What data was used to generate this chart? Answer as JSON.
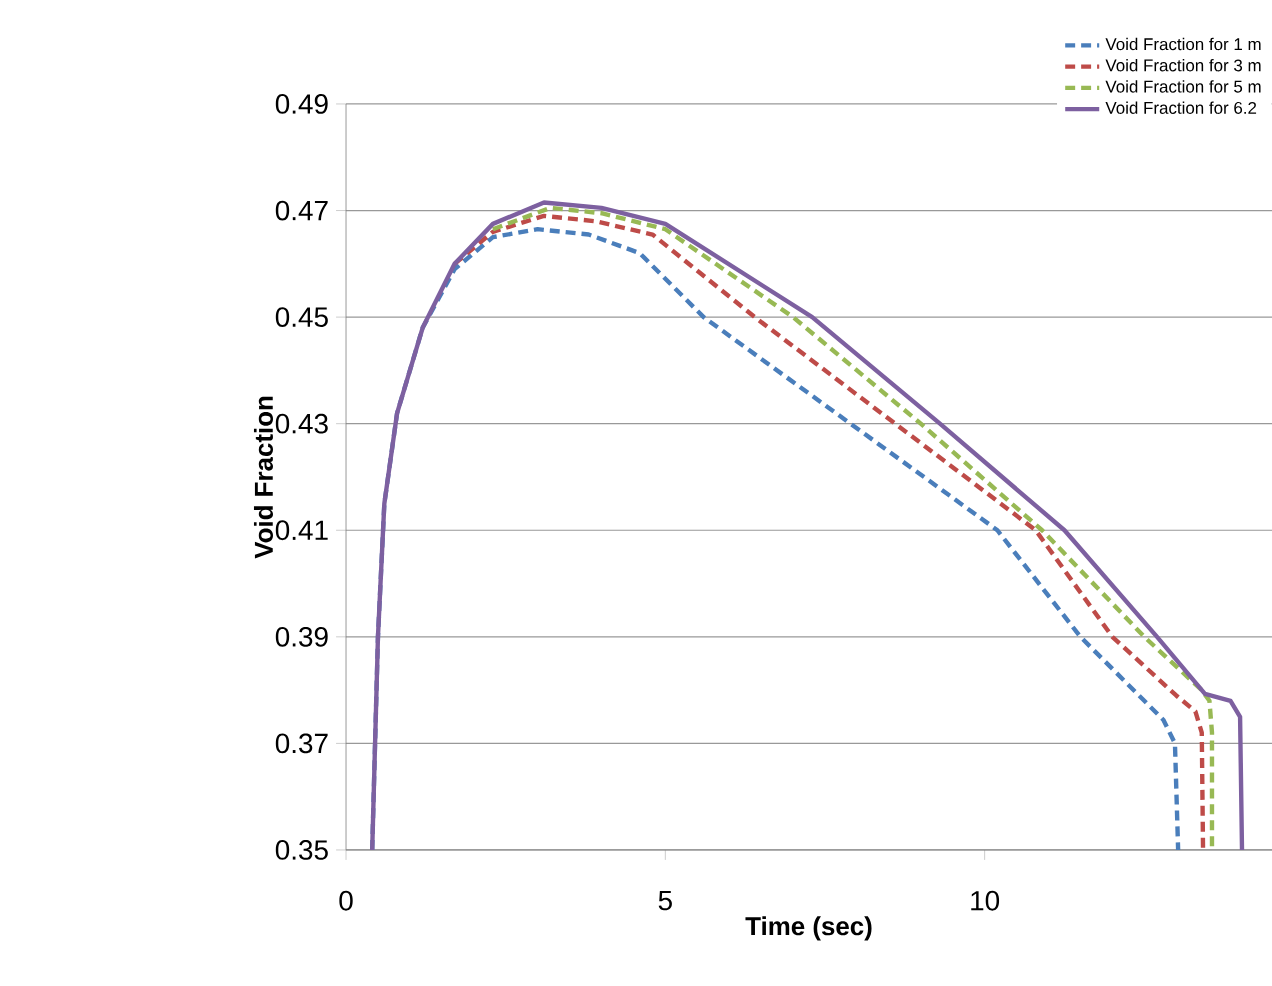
{
  "chart_data": {
    "type": "line",
    "xlabel": "Time (sec)",
    "ylabel": "Void Fraction",
    "xlim": [
      0,
      14.5
    ],
    "ylim": [
      0.35,
      0.49
    ],
    "xticks": [
      0,
      5,
      10
    ],
    "yticks": [
      0.35,
      0.37,
      0.39,
      0.41,
      0.43,
      0.45,
      0.47,
      0.49
    ],
    "grid": "y",
    "legend": "top right",
    "marker": "none",
    "series": [
      {
        "name": "Void Fraction for 1 m",
        "color": "#4a7ebb",
        "line_style": "dashed",
        "x": [
          0.41,
          0.5,
          0.6,
          0.8,
          1.2,
          1.7,
          2.3,
          3.0,
          3.8,
          4.6,
          5.6,
          7.9,
          10.2,
          11.5,
          12.5,
          12.8,
          12.98,
          13.03
        ],
        "values": [
          0.35,
          0.39,
          0.415,
          0.432,
          0.448,
          0.459,
          0.465,
          0.4665,
          0.4655,
          0.462,
          0.45,
          0.43,
          0.41,
          0.39,
          0.378,
          0.3744,
          0.37,
          0.35
        ]
      },
      {
        "name": "Void Fraction for 3 m",
        "color": "#be4b48",
        "line_style": "dashed",
        "x": [
          1.7,
          2.3,
          3.1,
          3.9,
          4.8,
          6.4,
          8.6,
          10.8,
          12.0,
          13.0,
          13.3,
          13.4,
          13.42
        ],
        "values": [
          0.46,
          0.466,
          0.469,
          0.468,
          0.4655,
          0.45,
          0.43,
          0.41,
          0.39,
          0.379,
          0.376,
          0.372,
          0.35
        ]
      },
      {
        "name": "Void Fraction for 5 m",
        "color": "#98b954",
        "line_style": "dashed",
        "x": [
          2.3,
          3.2,
          4.0,
          5.0,
          7.0,
          9.0,
          10.9,
          12.5,
          13.4,
          13.52,
          13.56,
          13.56
        ],
        "values": [
          0.4665,
          0.4705,
          0.4695,
          0.4665,
          0.45,
          0.43,
          0.41,
          0.39,
          0.38,
          0.378,
          0.372,
          0.35
        ]
      },
      {
        "name": "Void Fraction for 6.2",
        "color": "#7d60a0",
        "line_style": "solid",
        "x": [
          0.41,
          0.5,
          0.6,
          0.8,
          1.2,
          1.7,
          2.3,
          3.1,
          4.0,
          5.0,
          7.3,
          9.3,
          11.25,
          12.7,
          13.45,
          13.85,
          14.0,
          14.03
        ],
        "values": [
          0.35,
          0.39,
          0.415,
          0.432,
          0.448,
          0.46,
          0.4675,
          0.4715,
          0.4705,
          0.4675,
          0.45,
          0.43,
          0.41,
          0.39,
          0.3793,
          0.378,
          0.375,
          0.35
        ]
      }
    ]
  }
}
